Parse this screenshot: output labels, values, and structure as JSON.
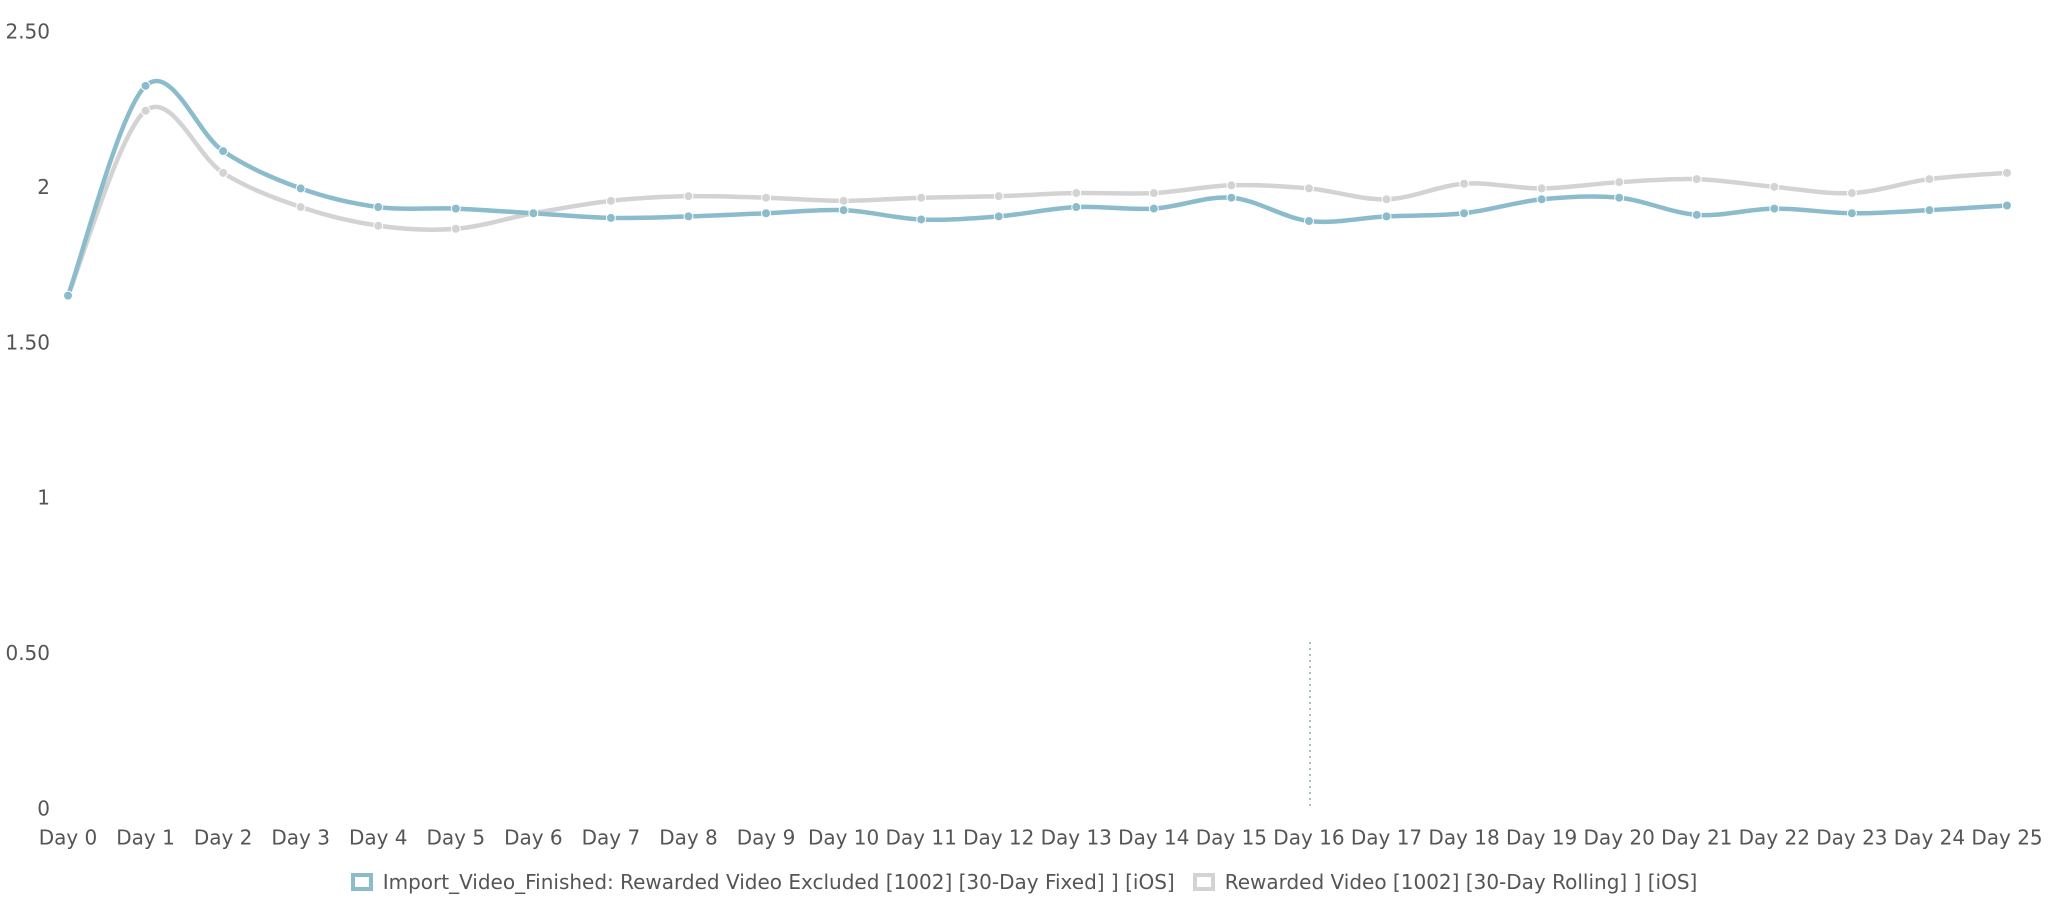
{
  "chart_data": {
    "type": "line",
    "categories": [
      "Day 0",
      "Day 1",
      "Day 2",
      "Day 3",
      "Day 4",
      "Day 5",
      "Day 6",
      "Day 7",
      "Day 8",
      "Day 9",
      "Day 10",
      "Day 11",
      "Day 12",
      "Day 13",
      "Day 14",
      "Day 15",
      "Day 16",
      "Day 17",
      "Day 18",
      "Day 19",
      "Day 20",
      "Day 21",
      "Day 22",
      "Day 23",
      "Day 24",
      "Day 25"
    ],
    "series": [
      {
        "name": "Import_Video_Finished: Rewarded Video Excluded [1002] [30-Day Fixed] ] [iOS]",
        "color": "#8bbccc",
        "values": [
          1.655,
          2.33,
          2.12,
          2.0,
          1.94,
          1.935,
          1.92,
          1.905,
          1.91,
          1.92,
          1.93,
          1.9,
          1.91,
          1.94,
          1.935,
          1.97,
          1.895,
          1.91,
          1.92,
          1.965,
          1.97,
          1.915,
          1.935,
          1.92,
          1.93,
          1.945
        ]
      },
      {
        "name": "Rewarded Video [1002] [30-Day Rolling] ] [iOS]",
        "color": "#d3d3d3",
        "values": [
          1.655,
          2.25,
          2.05,
          1.94,
          1.88,
          1.87,
          1.92,
          1.96,
          1.975,
          1.97,
          1.96,
          1.97,
          1.975,
          1.985,
          1.985,
          2.01,
          2.0,
          1.965,
          2.015,
          2.0,
          2.02,
          2.03,
          2.005,
          1.985,
          2.03,
          2.05
        ]
      }
    ],
    "ylim": [
      0,
      2.5
    ],
    "yticks": [
      0,
      {
        "value": 0.5,
        "label": "0.50"
      },
      1,
      {
        "value": 1.5,
        "label": "1.50"
      },
      2,
      {
        "value": 2.5,
        "label": "2.50"
      }
    ],
    "grid": false
  }
}
